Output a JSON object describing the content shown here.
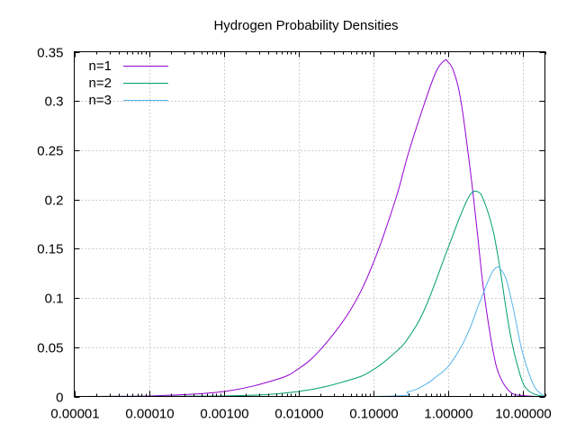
{
  "chart_data": {
    "type": "line",
    "title": "Hydrogen Probability Densities",
    "xlabel": "",
    "ylabel": "",
    "x_scale": "log",
    "xlim": [
      1e-05,
      20
    ],
    "ylim": [
      0,
      0.35
    ],
    "x_ticks": [
      1e-05,
      0.0001,
      0.001,
      0.01,
      0.1,
      1,
      10
    ],
    "x_tick_labels": [
      "0.00001",
      "0.00010",
      "0.00100",
      "0.01000",
      "0.10000",
      "1.00000",
      "10.00000"
    ],
    "y_ticks": [
      0,
      0.05,
      0.1,
      0.15,
      0.2,
      0.25,
      0.3,
      0.35
    ],
    "y_tick_labels": [
      "0",
      "0.05",
      "0.1",
      "0.15",
      "0.2",
      "0.25",
      "0.3",
      "0.35"
    ],
    "grid": true,
    "legend_position": "top-left",
    "series": [
      {
        "name": "n=1",
        "color": "#9400d3",
        "x": [
          1e-05,
          0.0001,
          0.001,
          0.005,
          0.01,
          0.02,
          0.05,
          0.1,
          0.2,
          0.3,
          0.5,
          0.7,
          0.9,
          1.0,
          1.2,
          1.5,
          2.0,
          2.5,
          3.0,
          4.0,
          5.0,
          7.0,
          10.0,
          15.0,
          20.0
        ],
        "y": [
          0.0,
          0.0005,
          0.005,
          0.017,
          0.028,
          0.048,
          0.088,
          0.135,
          0.2,
          0.248,
          0.3,
          0.33,
          0.341,
          0.34,
          0.33,
          0.3,
          0.23,
          0.165,
          0.11,
          0.048,
          0.02,
          0.004,
          0.001,
          0.0,
          0.0
        ]
      },
      {
        "name": "n=2",
        "color": "#009e73",
        "x": [
          1e-05,
          0.001,
          0.01,
          0.05,
          0.1,
          0.2,
          0.3,
          0.5,
          1.0,
          1.5,
          2.0,
          2.5,
          3.0,
          4.0,
          5.0,
          6.0,
          7.0,
          8.0,
          10.0,
          12.0,
          15.0,
          20.0
        ],
        "y": [
          0.0,
          0.0005,
          0.005,
          0.017,
          0.027,
          0.045,
          0.06,
          0.09,
          0.15,
          0.185,
          0.205,
          0.208,
          0.2,
          0.17,
          0.13,
          0.09,
          0.06,
          0.04,
          0.015,
          0.006,
          0.002,
          0.0
        ]
      },
      {
        "name": "n=3",
        "color": "#56b4e9",
        "x": [
          1e-05,
          0.1,
          0.3,
          0.5,
          0.7,
          1.0,
          1.5,
          2.0,
          2.5,
          3.0,
          3.5,
          4.0,
          4.5,
          5.0,
          6.0,
          7.0,
          8.0,
          9.0,
          10.0,
          12.0,
          15.0,
          20.0
        ],
        "y": [
          0.0,
          0.0,
          0.005,
          0.012,
          0.02,
          0.03,
          0.05,
          0.07,
          0.09,
          0.105,
          0.118,
          0.127,
          0.131,
          0.13,
          0.12,
          0.1,
          0.08,
          0.06,
          0.045,
          0.025,
          0.008,
          0.0
        ]
      }
    ]
  }
}
